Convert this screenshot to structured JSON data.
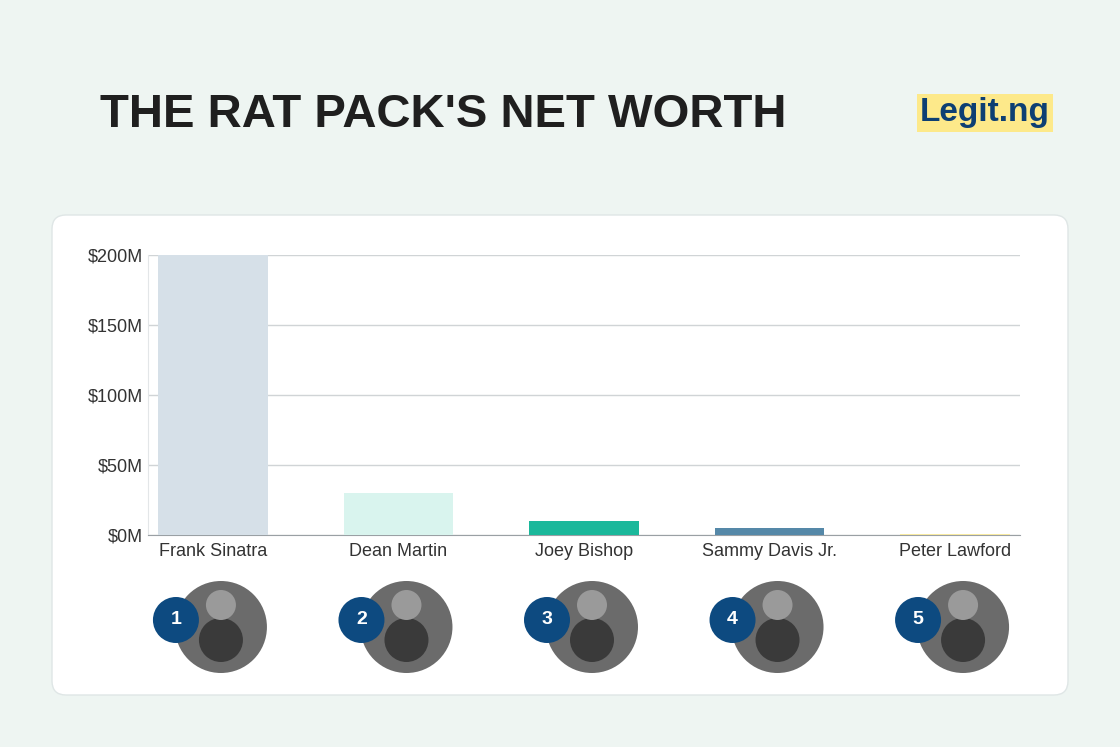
{
  "chart_data": {
    "type": "bar",
    "title": "THE RAT PACK'S NET WORTH",
    "logo": "Legit.ng",
    "categories": [
      "Frank Sinatra",
      "Dean Martin",
      "Joey Bishop",
      "Sammy Davis Jr.",
      "Peter Lawford"
    ],
    "values": [
      200,
      30,
      10,
      5,
      0.5
    ],
    "colors": [
      "#d6e0e8",
      "#d9f4ee",
      "#1bb89b",
      "#5588a8",
      "#f7e9a0"
    ],
    "ranks": [
      1,
      2,
      3,
      4,
      5
    ],
    "ylim": [
      0,
      200
    ],
    "yticks": [
      {
        "value": 0,
        "label": "$0M"
      },
      {
        "value": 50,
        "label": "$50M"
      },
      {
        "value": 100,
        "label": "$100M"
      },
      {
        "value": 150,
        "label": "$150M"
      },
      {
        "value": 200,
        "label": "$200M"
      }
    ],
    "grid": true
  }
}
